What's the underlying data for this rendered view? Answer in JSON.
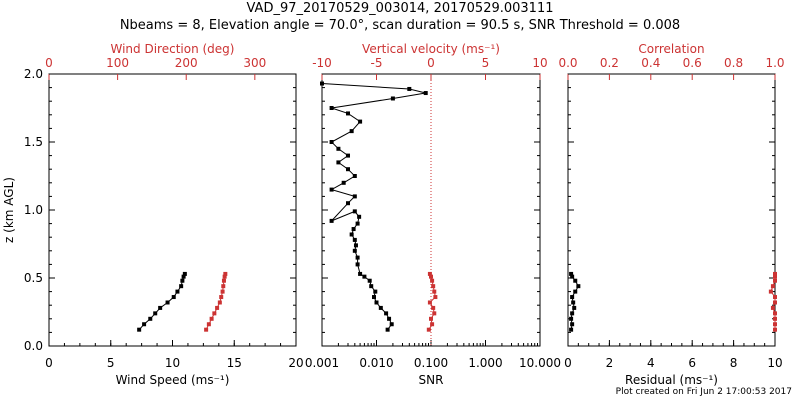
{
  "header": {
    "title": "VAD_97_20170529_003014, 20170529.003111",
    "subtitle": "Nbeams = 8, Elevation angle = 70.0°, scan duration = 90.5 s, SNR Threshold = 0.008"
  },
  "footer": {
    "plot_created": "Plot created on Fri Jun  2 17:00:53 2017"
  },
  "colors": {
    "primary": "#000000",
    "secondary": "#cc3333"
  },
  "chart_data": [
    {
      "type": "line",
      "panel": "wind",
      "ylabel": "z (km AGL)",
      "ylim": [
        0,
        2.0
      ],
      "yticks": [
        "0.0",
        "0.5",
        "1.0",
        "1.5",
        "2.0"
      ],
      "xlabel": "Wind Speed (ms⁻¹)",
      "xlim": [
        0,
        20
      ],
      "xticks": [
        "0",
        "5",
        "10",
        "15",
        "20"
      ],
      "x2label": "Wind Direction (deg)",
      "x2lim": [
        0,
        360
      ],
      "x2ticks": [
        "0",
        "100",
        "200",
        "300"
      ],
      "series": [
        {
          "axis": "bottom",
          "color": "#000000",
          "x": [
            7.3,
            7.7,
            8.2,
            8.6,
            9.0,
            9.6,
            10.1,
            10.4,
            10.7,
            10.8,
            10.9,
            11.0
          ],
          "y": [
            0.12,
            0.16,
            0.2,
            0.24,
            0.28,
            0.32,
            0.36,
            0.4,
            0.44,
            0.48,
            0.51,
            0.53
          ]
        },
        {
          "axis": "top",
          "color": "#cc3333",
          "x": [
            229,
            233,
            237,
            241,
            245,
            249,
            251,
            253,
            254,
            255,
            256,
            257
          ],
          "y": [
            0.12,
            0.16,
            0.2,
            0.24,
            0.28,
            0.32,
            0.36,
            0.4,
            0.44,
            0.48,
            0.51,
            0.53
          ]
        }
      ]
    },
    {
      "type": "line",
      "panel": "vertical",
      "xlabel": "SNR",
      "xscale": "log",
      "xlim": [
        0.001,
        10
      ],
      "xticks": [
        "0.001",
        "0.010",
        "0.100",
        "1.000",
        "10.000"
      ],
      "x2label": "Vertical velocity (ms⁻¹)",
      "x2lim": [
        -10,
        10
      ],
      "x2ticks": [
        "-10",
        "-5",
        "0",
        "5",
        "10"
      ],
      "reference_line": {
        "axis": "top",
        "value": 0,
        "style": "dotted"
      },
      "series": [
        {
          "axis": "bottom",
          "color": "#000000",
          "x": [
            0.016,
            0.019,
            0.017,
            0.015,
            0.012,
            0.01,
            0.009,
            0.0095,
            0.008,
            0.0075,
            0.006,
            0.005,
            0.0045,
            0.0045,
            0.004,
            0.0042,
            0.004,
            0.0035,
            0.0038,
            0.0045,
            0.0048,
            0.004,
            0.0015,
            0.003,
            0.004,
            0.0015,
            0.0025,
            0.004,
            0.003,
            0.002,
            0.003,
            0.002,
            0.0015,
            0.0035,
            0.005,
            0.003,
            0.0015,
            0.02,
            0.08,
            0.04,
            0.001
          ],
          "y": [
            0.12,
            0.16,
            0.2,
            0.24,
            0.28,
            0.32,
            0.36,
            0.4,
            0.44,
            0.48,
            0.51,
            0.53,
            0.6,
            0.65,
            0.7,
            0.74,
            0.78,
            0.82,
            0.86,
            0.9,
            0.95,
            0.99,
            0.92,
            1.05,
            1.1,
            1.15,
            1.2,
            1.25,
            1.3,
            1.35,
            1.4,
            1.45,
            1.5,
            1.58,
            1.65,
            1.71,
            1.75,
            1.82,
            1.86,
            1.89,
            1.93
          ]
        },
        {
          "axis": "top",
          "color": "#cc3333",
          "x": [
            -0.2,
            0.1,
            0.0,
            0.3,
            0.2,
            -0.1,
            0.4,
            0.3,
            0.2,
            0.1,
            0.0,
            -0.1
          ],
          "y": [
            0.12,
            0.16,
            0.2,
            0.24,
            0.28,
            0.32,
            0.36,
            0.4,
            0.44,
            0.48,
            0.51,
            0.53
          ]
        }
      ]
    },
    {
      "type": "line",
      "panel": "residual",
      "xlabel": "Residual (ms⁻¹)",
      "xlim": [
        0,
        10
      ],
      "xticks": [
        "0",
        "2",
        "4",
        "6",
        "8",
        "10"
      ],
      "x2label": "Correlation",
      "x2lim": [
        0,
        1.0
      ],
      "x2ticks": [
        "0.0",
        "0.2",
        "0.4",
        "0.6",
        "0.8",
        "1.0"
      ],
      "series": [
        {
          "axis": "bottom",
          "color": "#000000",
          "x": [
            0.15,
            0.2,
            0.15,
            0.2,
            0.3,
            0.25,
            0.2,
            0.35,
            0.5,
            0.35,
            0.2,
            0.15
          ],
          "y": [
            0.12,
            0.16,
            0.2,
            0.24,
            0.28,
            0.32,
            0.36,
            0.4,
            0.44,
            0.48,
            0.51,
            0.53
          ]
        },
        {
          "axis": "top",
          "color": "#cc3333",
          "x": [
            1.0,
            1.0,
            1.0,
            1.0,
            0.99,
            1.0,
            1.0,
            0.98,
            0.99,
            1.0,
            1.0,
            1.0
          ],
          "y": [
            0.12,
            0.16,
            0.2,
            0.24,
            0.28,
            0.32,
            0.36,
            0.4,
            0.44,
            0.48,
            0.51,
            0.53
          ]
        }
      ]
    }
  ]
}
